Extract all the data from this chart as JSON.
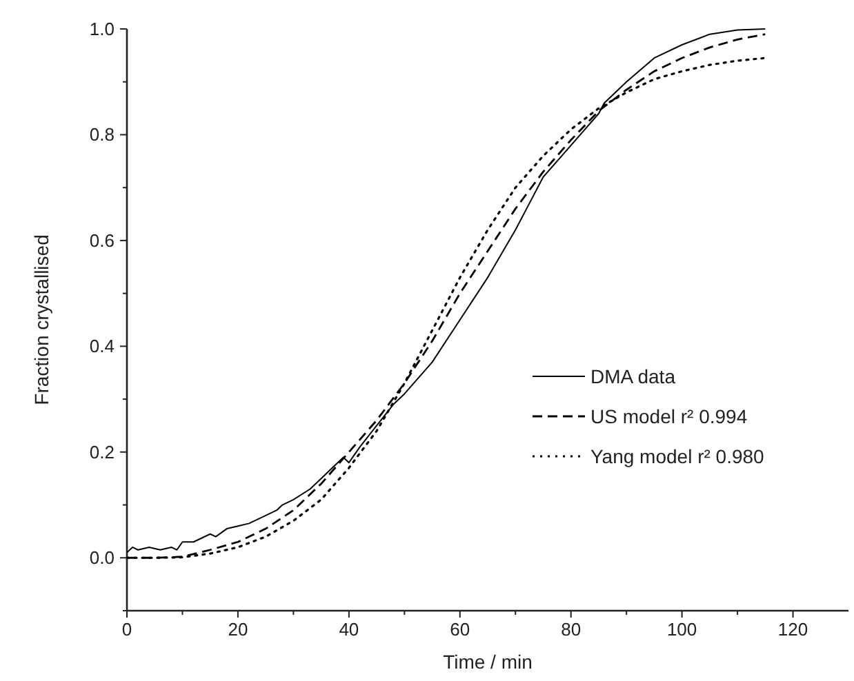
{
  "chart_data": {
    "type": "line",
    "xlabel": "Time / min",
    "ylabel": "Fraction crystallised",
    "xlim": [
      0,
      130
    ],
    "ylim": [
      -0.1,
      1.0
    ],
    "xticks": [
      0,
      {
        "value": 10,
        "label": null
      },
      20,
      {
        "value": 30,
        "label": null
      },
      40,
      {
        "value": 50,
        "label": null
      },
      60,
      {
        "value": 70,
        "label": null
      },
      80,
      {
        "value": 90,
        "label": null
      },
      100,
      {
        "value": 110,
        "label": null
      },
      120
    ],
    "yticks": [
      {
        "value": -0.1,
        "label": null
      },
      "0.0",
      {
        "value": 0.1,
        "label": null
      },
      0.2,
      {
        "value": 0.3,
        "label": null
      },
      0.4,
      {
        "value": 0.5,
        "label": null
      },
      0.6,
      {
        "value": 0.7,
        "label": null
      },
      0.8,
      {
        "value": 0.9,
        "label": null
      },
      "1.0"
    ],
    "grid": false,
    "legend": "right",
    "marker": "none",
    "series": [
      {
        "name": "DMA data",
        "color": "#000000",
        "line_style": "solid",
        "x": [
          0,
          1,
          2,
          4,
          6,
          8,
          9,
          10,
          12,
          15,
          16,
          18,
          20,
          22,
          25,
          27,
          28,
          30,
          33,
          35,
          37,
          39,
          40,
          42,
          45,
          48,
          50,
          55,
          60,
          65,
          70,
          72,
          75,
          80,
          85,
          86,
          90,
          95,
          100,
          105,
          110,
          115
        ],
        "values": [
          0.01,
          0.02,
          0.015,
          0.02,
          0.015,
          0.02,
          0.015,
          0.03,
          0.03,
          0.045,
          0.04,
          0.055,
          0.06,
          0.065,
          0.08,
          0.09,
          0.1,
          0.11,
          0.13,
          0.15,
          0.17,
          0.19,
          0.18,
          0.21,
          0.25,
          0.29,
          0.31,
          0.37,
          0.45,
          0.53,
          0.62,
          0.66,
          0.72,
          0.78,
          0.84,
          0.86,
          0.9,
          0.945,
          0.97,
          0.99,
          0.998,
          1.0
        ]
      },
      {
        "name": "US model r² 0.994",
        "color": "#000000",
        "line_style": "dashed",
        "x": [
          0,
          5,
          10,
          15,
          20,
          25,
          30,
          35,
          40,
          45,
          50,
          55,
          60,
          65,
          70,
          75,
          80,
          85,
          90,
          95,
          100,
          105,
          110,
          115
        ],
        "values": [
          0,
          0,
          0.002,
          0.015,
          0.03,
          0.055,
          0.09,
          0.14,
          0.2,
          0.26,
          0.33,
          0.41,
          0.5,
          0.58,
          0.66,
          0.73,
          0.79,
          0.845,
          0.885,
          0.92,
          0.945,
          0.965,
          0.98,
          0.99
        ]
      },
      {
        "name": "Yang model r² 0.980",
        "color": "#000000",
        "line_style": "dotted",
        "x": [
          0,
          5,
          10,
          15,
          20,
          25,
          30,
          35,
          40,
          45,
          50,
          55,
          60,
          65,
          70,
          75,
          80,
          85,
          90,
          95,
          100,
          105,
          110,
          115
        ],
        "values": [
          0,
          0,
          0.001,
          0.008,
          0.02,
          0.04,
          0.07,
          0.11,
          0.17,
          0.24,
          0.33,
          0.43,
          0.53,
          0.62,
          0.7,
          0.76,
          0.81,
          0.85,
          0.88,
          0.905,
          0.92,
          0.932,
          0.94,
          0.945
        ]
      }
    ]
  }
}
